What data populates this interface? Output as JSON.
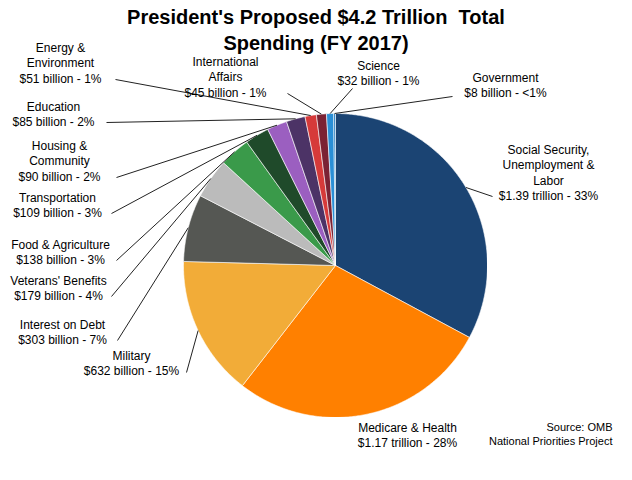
{
  "chart_data": {
    "type": "pie",
    "title": "President's Proposed $4.2 Trillion  Total Spending (FY 2017)",
    "categories": [
      "Social Security, Unemployment & Labor",
      "Medicare & Health",
      "Military",
      "Interest on Debt",
      "Veterans' Benefits",
      "Food & Agriculture",
      "Transportation",
      "Housing & Community",
      "Education",
      "Energy & Environment",
      "International Affairs",
      "Science",
      "Government"
    ],
    "values": [
      1390,
      1170,
      632,
      303,
      179,
      138,
      109,
      90,
      85,
      51,
      45,
      32,
      8
    ],
    "value_labels": [
      "$1.39 trillion - 33%",
      "$1.17 trillion - 28%",
      "$632 billion - 15%",
      "$303 billion - 7%",
      "$179 billion - 4%",
      "$138 billion - 3%",
      "$109 billion - 3%",
      "$90 billion - 2%",
      "$85 billion - 2%",
      "$51 billion - 1%",
      "$45 billion - 1%",
      "$32 billion - 1%",
      "$8 billion - <1%"
    ],
    "colors": [
      "#1b4473",
      "#ff8000",
      "#f2ac38",
      "#555753",
      "#bbbbbb",
      "#3a9a4a",
      "#1f4a2a",
      "#9b5fc0",
      "#4c3366",
      "#d63a3a",
      "#7b2234",
      "#2a8fd6",
      "#1b75bb"
    ],
    "data_labels": true,
    "caption": [
      "Source: OMB",
      "National Priorities Project"
    ]
  }
}
